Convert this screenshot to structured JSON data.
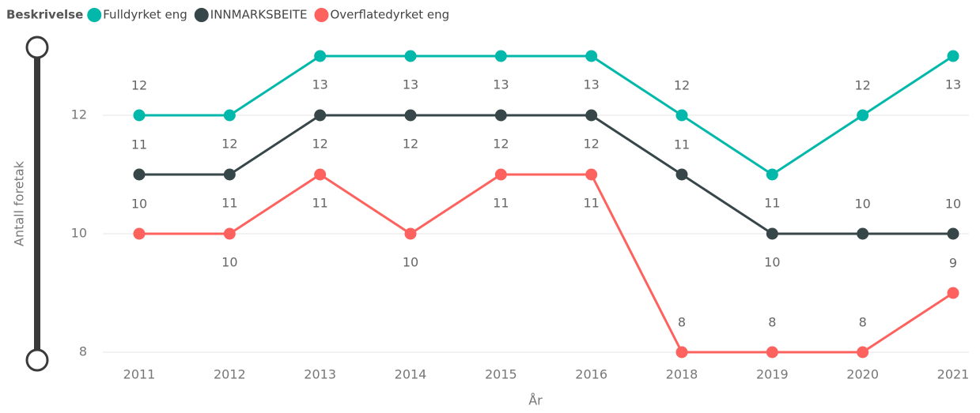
{
  "chart_data": {
    "type": "line",
    "legend_title": "Beskrivelse",
    "x_label": "År",
    "y_label": "Antall foretak",
    "categories": [
      "2011",
      "2012",
      "2013",
      "2014",
      "2015",
      "2016",
      "2018",
      "2019",
      "2020",
      "2021"
    ],
    "series": [
      {
        "name": "Fulldyrket eng",
        "color": "#01B8AA",
        "values": [
          12,
          12,
          13,
          13,
          13,
          13,
          12,
          11,
          12,
          13
        ]
      },
      {
        "name": "INNMARKSBEITE",
        "color": "#374649",
        "values": [
          11,
          11,
          12,
          12,
          12,
          12,
          11,
          10,
          10,
          10
        ]
      },
      {
        "name": "Overflatedyrket eng",
        "color": "#FD625E",
        "values": [
          10,
          10,
          11,
          10,
          11,
          11,
          8,
          8,
          8,
          9
        ]
      }
    ],
    "ylim": [
      8,
      13
    ],
    "yticks": [
      8,
      10,
      12
    ],
    "grid": true,
    "legend": "top-left"
  }
}
